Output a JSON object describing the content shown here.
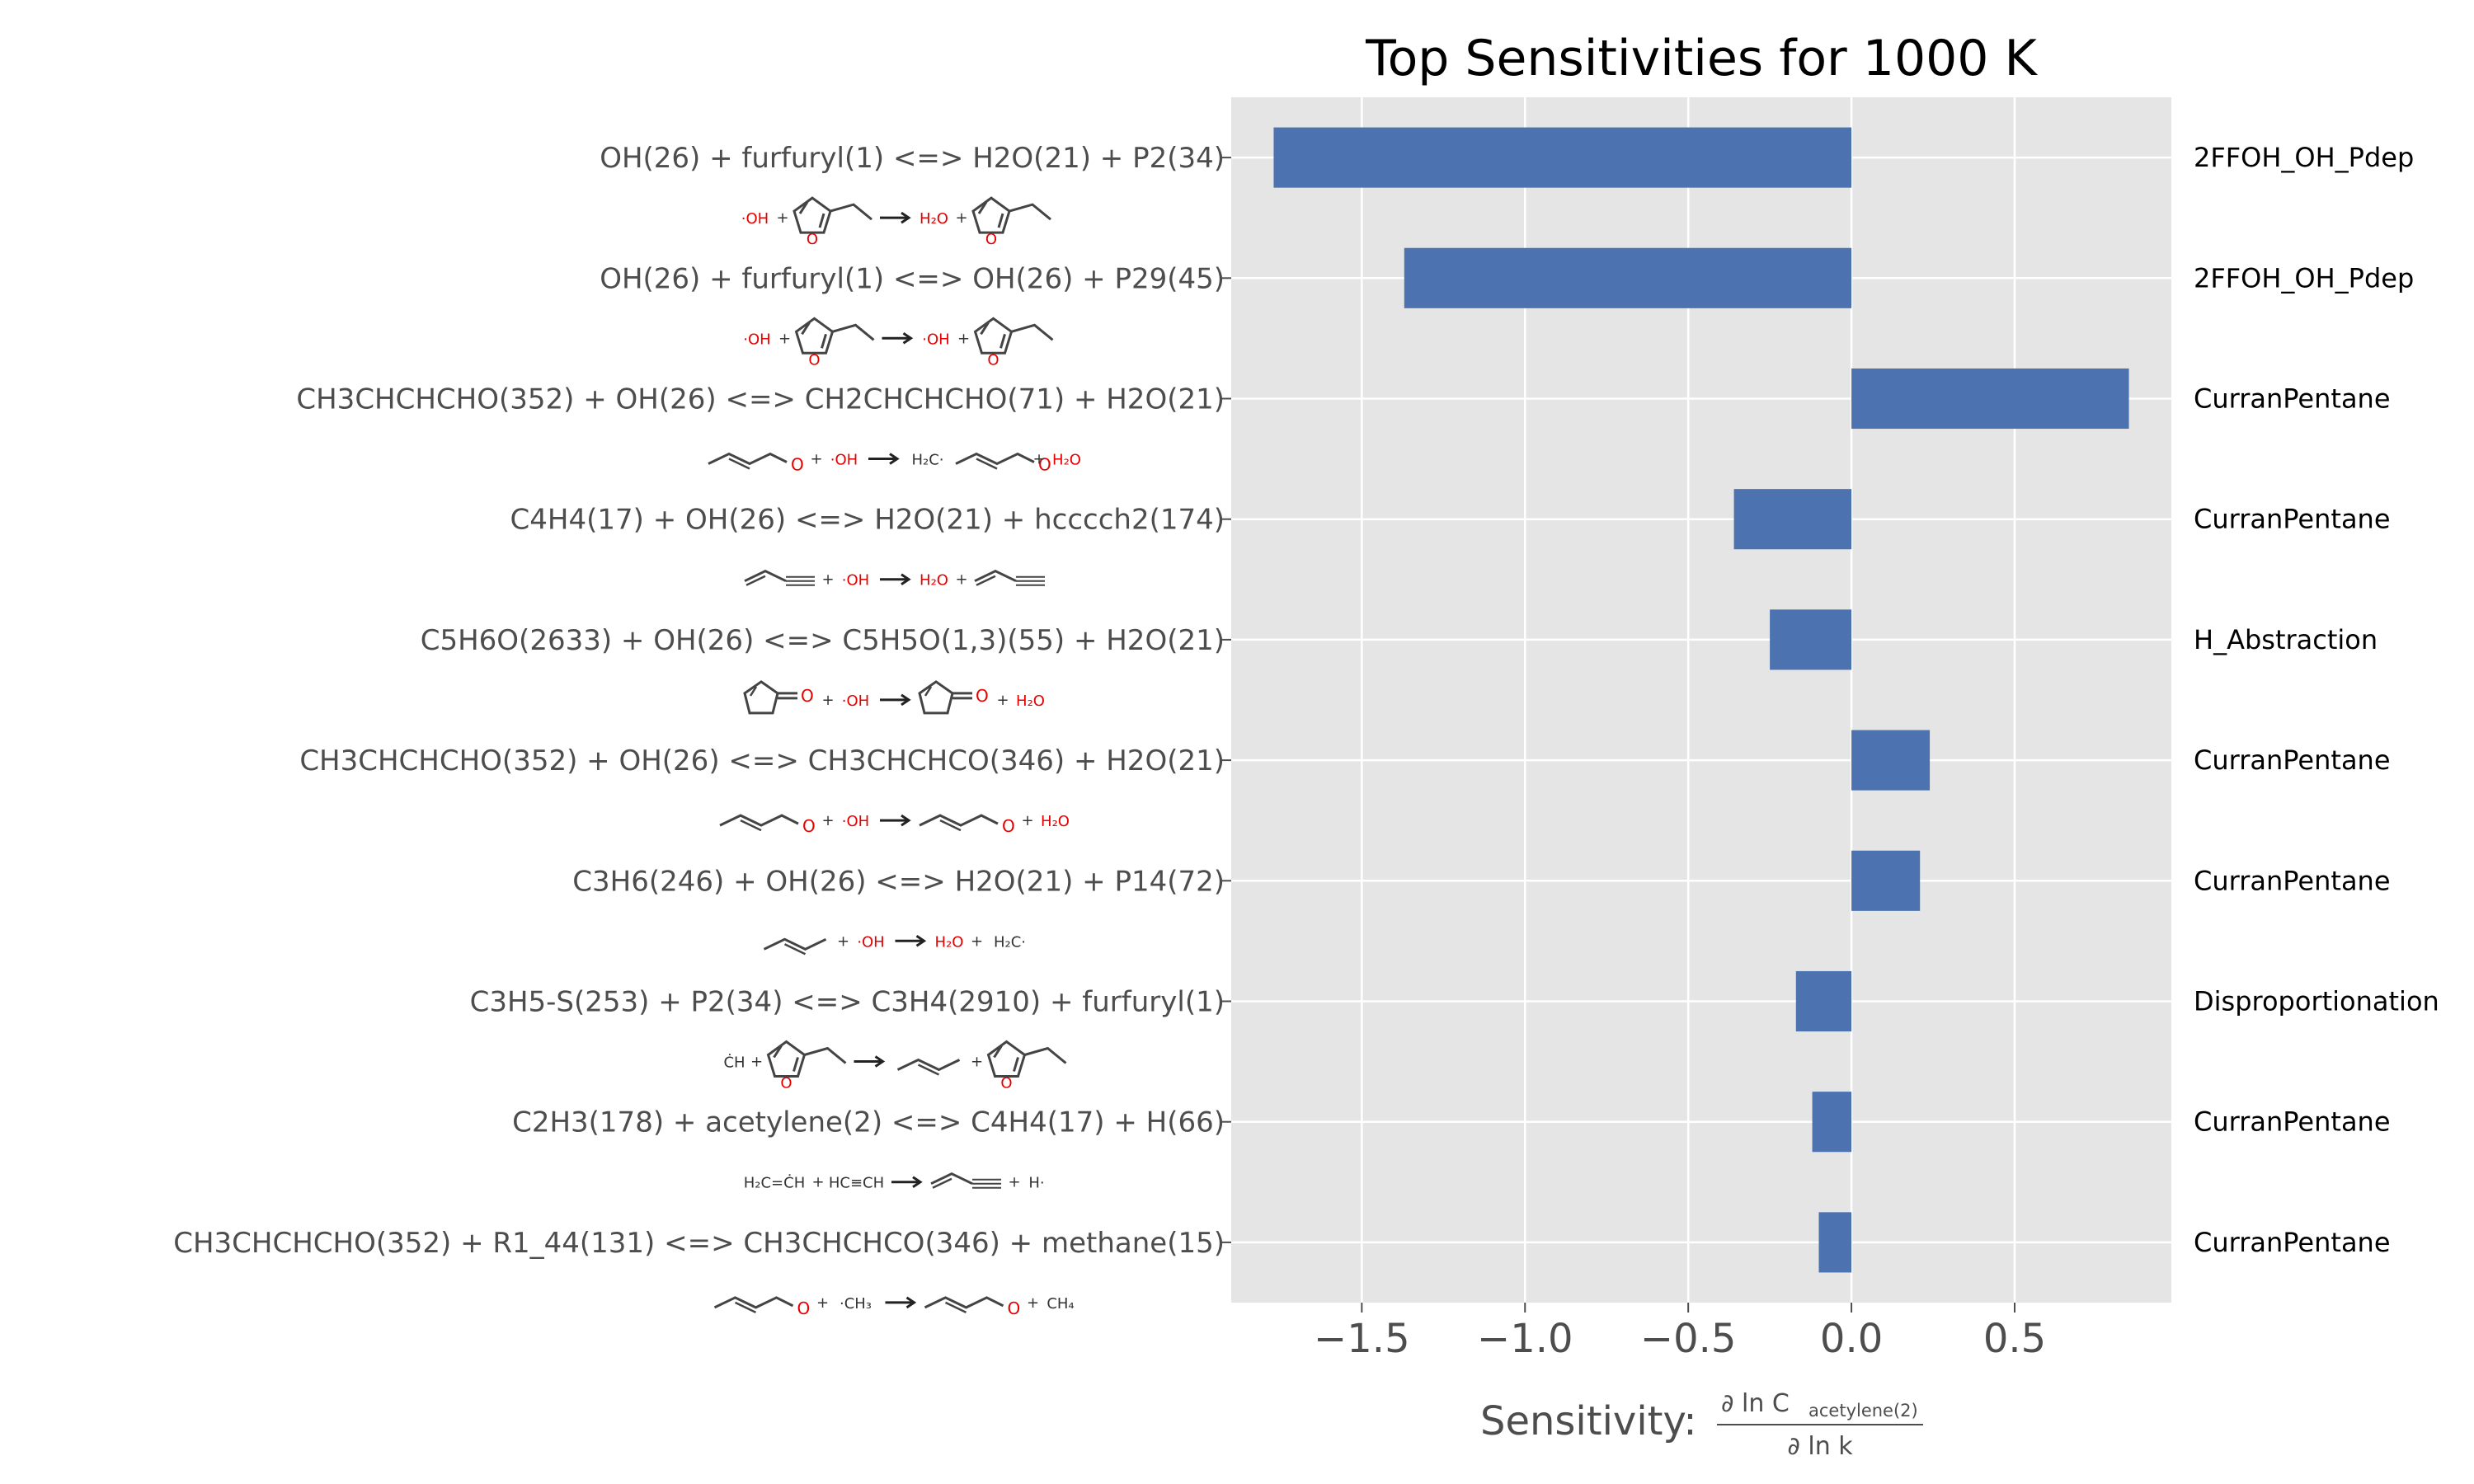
{
  "chart_data": {
    "type": "bar",
    "orientation": "horizontal",
    "title": "Top Sensitivities for 1000 K",
    "xlabel": "Sensitivity:",
    "xlabel_fraction": {
      "numerator_prefix": "∂ ln C",
      "numerator_subscript": "acetylene(2)",
      "denominator": "∂ ln k"
    },
    "xlim": [
      -1.9,
      0.98
    ],
    "xticks": [
      -1.5,
      -1.0,
      -0.5,
      0.0,
      0.5
    ],
    "xtick_labels": [
      "−1.5",
      "−1.0",
      "−0.5",
      "0.0",
      "0.5"
    ],
    "grid": true,
    "bar_color": "#4c72b0",
    "reactions": [
      {
        "label": "OH(26) + furfuryl(1) <=> H2O(21) + P2(34)",
        "value": -1.77,
        "family": "2FFOH_OH_Pdep",
        "structure": [
          "·OH",
          "+",
          "[furfuryl alcohol]",
          "→",
          "H₂O",
          "+",
          "[radical]"
        ]
      },
      {
        "label": "OH(26) + furfuryl(1) <=> OH(26) + P29(45)",
        "value": -1.37,
        "family": "2FFOH_OH_Pdep",
        "structure": [
          "·OH",
          "+",
          "[furfuryl alcohol]",
          "→",
          "·OH",
          "+",
          "[product]"
        ]
      },
      {
        "label": "CH3CHCHCHO(352) + OH(26) <=> CH2CHCHCHO(71) + H2O(21)",
        "value": 0.85,
        "family": "CurranPentane",
        "structure": [
          "[crotonaldehyde]",
          "+",
          "·OH",
          "→",
          "H₂C·",
          "[radical]",
          "+",
          "H₂O"
        ]
      },
      {
        "label": "C4H4(17) + OH(26) <=> H2O(21) + hcccch2(174)",
        "value": -0.36,
        "family": "CurranPentane",
        "structure": [
          "[vinylacetylene]",
          "+",
          "·OH",
          "→",
          "H₂O",
          "+",
          "[radical]"
        ]
      },
      {
        "label": "C5H6O(2633) + OH(26) <=> C5H5O(1,3)(55) + H2O(21)",
        "value": -0.25,
        "family": "H_Abstraction",
        "structure": [
          "[cyclopentenone]",
          "+",
          "·OH",
          "→",
          "[radical]",
          "+",
          "H₂O"
        ]
      },
      {
        "label": "CH3CHCHCHO(352) + OH(26) <=> CH3CHCHCO(346) + H2O(21)",
        "value": 0.24,
        "family": "CurranPentane",
        "structure": [
          "[crotonaldehyde]",
          "+",
          "·OH",
          "→",
          "[acyl radical]",
          "+",
          "H₂O"
        ]
      },
      {
        "label": "C3H6(246) + OH(26) <=> H2O(21) + P14(72)",
        "value": 0.21,
        "family": "CurranPentane",
        "structure": [
          "[propene]",
          "+",
          "·OH",
          "→",
          "H₂O",
          "+",
          "H₂C·"
        ]
      },
      {
        "label": "C3H5-S(253) + P2(34) <=> C3H4(2910) + furfuryl(1)",
        "value": -0.17,
        "family": "Disproportionation",
        "structure": [
          "ĊH",
          "+",
          "[radical]",
          "→",
          "[allene]",
          "+",
          "[furfuryl alcohol]"
        ]
      },
      {
        "label": "C2H3(178) + acetylene(2) <=> C4H4(17) + H(66)",
        "value": -0.12,
        "family": "CurranPentane",
        "structure": [
          "H₂C=ĊH",
          "+",
          "HC≡CH",
          "→",
          "[vinylacetylene]",
          "+",
          "H·"
        ]
      },
      {
        "label": "CH3CHCHCHO(352) + R1_44(131) <=> CH3CHCHCO(346) + methane(15)",
        "value": -0.1,
        "family": "CurranPentane",
        "structure": [
          "[crotonaldehyde]",
          "+",
          "·CH₃",
          "→",
          "[acyl radical]",
          "+",
          "CH₄"
        ]
      }
    ]
  }
}
